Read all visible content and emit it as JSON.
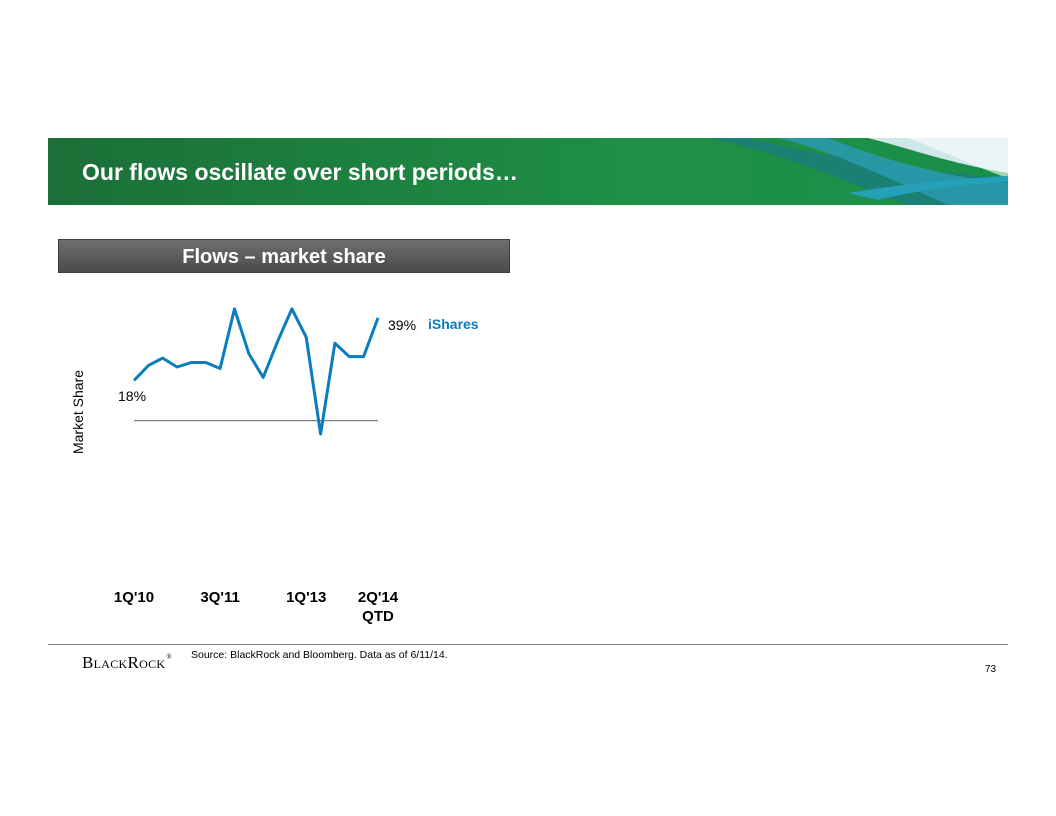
{
  "slide": {
    "title": "Our flows oscillate over short periods…",
    "panel_header": "Flows – market share",
    "source": "Source: BlackRock and Bloomberg. Data as of 6/11/14.",
    "logo_text": "BlackRock",
    "logo_mark": "®",
    "page_number": "73"
  },
  "colors": {
    "title_band": "#1b7a3d",
    "series_line": "#0a7cbf",
    "baseline": "#808080",
    "series_label": "#0a7cbf"
  },
  "chart_data": {
    "type": "line",
    "ylabel": "Market Share",
    "x_ticks": [
      {
        "index": 0,
        "label": "1Q'10"
      },
      {
        "index": 6,
        "label": "3Q'11"
      },
      {
        "index": 12,
        "label": "1Q'13"
      },
      {
        "index": 17,
        "label": "2Q'14\nQTD"
      }
    ],
    "series": [
      {
        "name": "iShares",
        "values": [
          18,
          23,
          25.5,
          22.5,
          24,
          24,
          22,
          42,
          27,
          19,
          31,
          42,
          32.5,
          0,
          30.5,
          26,
          26,
          39
        ]
      }
    ],
    "ylim": [
      0,
      45
    ],
    "baseline_value": 4.5,
    "annotations": {
      "start_label": "18%",
      "end_label": "39%"
    }
  }
}
